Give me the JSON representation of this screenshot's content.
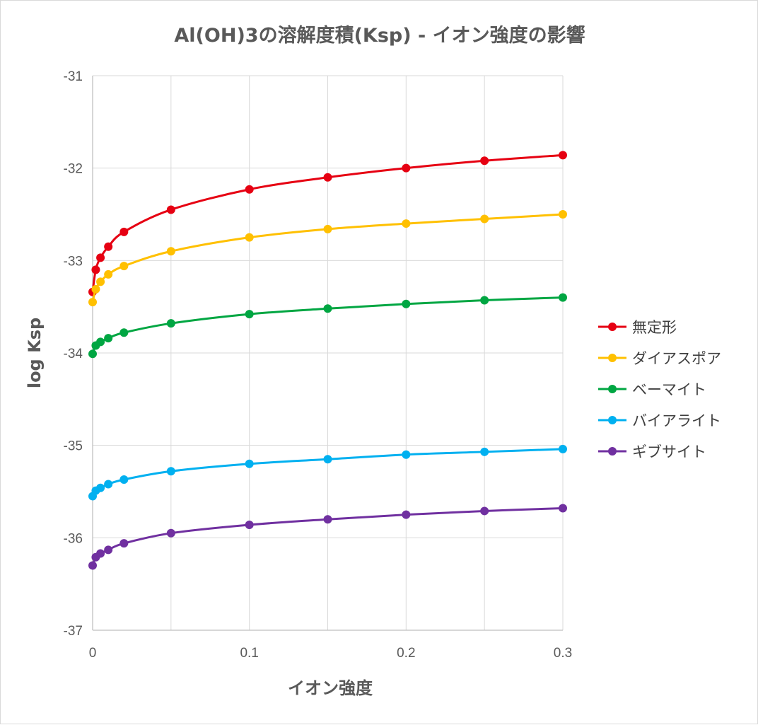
{
  "chart_data": {
    "type": "line",
    "title": "Al(OH)3の溶解度積(Ksp) - イオン強度の影響",
    "xlabel": "イオン強度",
    "ylabel": "log Ksp",
    "xlim": [
      0,
      0.3
    ],
    "ylim": [
      -37,
      -31
    ],
    "x_ticks": [
      0,
      0.05,
      0.1,
      0.15,
      0.2,
      0.25,
      0.3
    ],
    "x_tick_labels": [
      "0",
      "",
      "0.1",
      "",
      "0.2",
      "",
      "0.3"
    ],
    "y_ticks": [
      -31,
      -32,
      -33,
      -34,
      -35,
      -36,
      -37
    ],
    "y_tick_labels": [
      "-31",
      "-32",
      "-33",
      "-34",
      "-35",
      "-36",
      "-37"
    ],
    "grid": true,
    "legend_position": "right",
    "x": [
      0,
      0.002,
      0.005,
      0.01,
      0.02,
      0.05,
      0.1,
      0.15,
      0.2,
      0.25,
      0.3
    ],
    "series": [
      {
        "name": "無定形",
        "color": "#e60012",
        "values": [
          -33.34,
          -33.1,
          -32.97,
          -32.85,
          -32.69,
          -32.45,
          -32.23,
          -32.1,
          -32.0,
          -31.92,
          -31.86
        ]
      },
      {
        "name": "ダイアスポア",
        "color": "#ffc000",
        "values": [
          -33.45,
          -33.31,
          -33.23,
          -33.15,
          -33.06,
          -32.9,
          -32.75,
          -32.66,
          -32.6,
          -32.55,
          -32.5
        ]
      },
      {
        "name": "ベーマイト",
        "color": "#00a642",
        "values": [
          -34.01,
          -33.92,
          -33.88,
          -33.84,
          -33.78,
          -33.68,
          -33.58,
          -33.52,
          -33.47,
          -33.43,
          -33.4
        ]
      },
      {
        "name": "バイアライト",
        "color": "#00b0f0",
        "values": [
          -35.55,
          -35.49,
          -35.46,
          -35.42,
          -35.37,
          -35.28,
          -35.2,
          -35.15,
          -35.1,
          -35.07,
          -35.04
        ]
      },
      {
        "name": "ギブサイト",
        "color": "#7030a0",
        "values": [
          -36.3,
          -36.21,
          -36.17,
          -36.13,
          -36.06,
          -35.95,
          -35.86,
          -35.8,
          -35.75,
          -35.71,
          -35.68
        ]
      }
    ]
  }
}
